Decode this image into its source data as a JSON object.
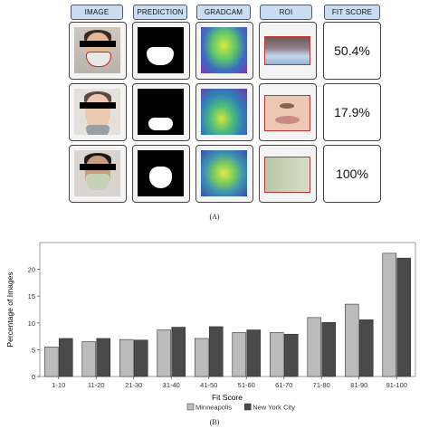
{
  "panel_a": {
    "headers": [
      "IMAGE",
      "PREDICTION",
      "GRADCAM",
      "ROI",
      "FIT SCORE"
    ],
    "rows": [
      {
        "fit_score": "50.4%"
      },
      {
        "fit_score": "17.9%"
      },
      {
        "fit_score": "100%"
      }
    ],
    "caption": "(A)"
  },
  "panel_b": {
    "caption": "(B)"
  },
  "chart_data": {
    "type": "bar",
    "title": "",
    "xlabel": "Fit Score",
    "ylabel": "Percentage of Images",
    "categories": [
      "1-10",
      "11-20",
      "21-30",
      "31-40",
      "41-50",
      "51-60",
      "61-70",
      "71-80",
      "81-90",
      "91-100"
    ],
    "series": [
      {
        "name": "Minneapolis",
        "color": "#bcbcbc",
        "values": [
          5.5,
          6.5,
          6.9,
          8.7,
          7.1,
          8.2,
          8.2,
          11.0,
          13.5,
          23.0
        ]
      },
      {
        "name": "New York City",
        "color": "#4a4a4a",
        "values": [
          7.1,
          7.1,
          6.8,
          9.2,
          9.3,
          8.7,
          7.9,
          10.1,
          10.6,
          22.1
        ]
      }
    ],
    "yticks": [
      0,
      5,
      10,
      15,
      20
    ],
    "ylim": [
      0,
      25
    ],
    "legend_title": "",
    "legend_placement": "bottom",
    "grid": false
  }
}
